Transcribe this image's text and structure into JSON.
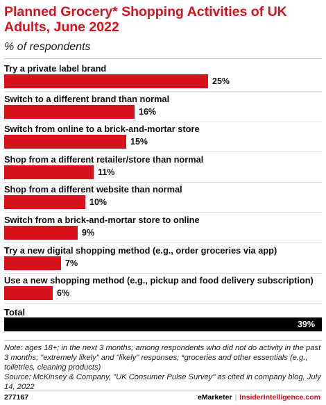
{
  "chart_data": {
    "type": "bar",
    "orientation": "horizontal",
    "title": "Planned Grocery* Shopping Activities of UK Adults, June 2022",
    "subtitle": "% of respondents",
    "categories": [
      "Try a private label brand",
      "Switch to a different brand than normal",
      "Switch from online to a brick-and-mortar store",
      "Shop from a different retailer/store than normal",
      "Shop from a different website than normal",
      "Switch from a brick-and-mortar store to online",
      "Try a new digital shopping method (e.g., order groceries via app)",
      "Use a new shopping method (e.g., pickup and food delivery subscription)"
    ],
    "values": [
      25,
      16,
      15,
      11,
      10,
      9,
      7,
      6
    ],
    "value_labels": [
      "25%",
      "16%",
      "15%",
      "11%",
      "10%",
      "9%",
      "7%",
      "6%"
    ],
    "total": {
      "label": "Total",
      "value": 39,
      "value_label": "39%"
    },
    "unit": "%",
    "bar_color": "#d6121c",
    "total_bar_color": "#000000"
  },
  "notes": {
    "text": "Note: ages 18+; in the next 3 months; among respondents who did not do activity in the past 3 months; \"extremely likely\" and \"likely\" responses; *groceries and other essentials (e.g., toiletries, cleaning products)",
    "source": "Source: McKinsey & Company, \"UK Consumer Pulse Survey\" as cited in company blog, July 14, 2022"
  },
  "footer": {
    "chart_id": "277167",
    "brand_left": "eMarketer",
    "separator": "|",
    "brand_right": "InsiderIntelligence.com"
  },
  "colors": {
    "accent": "#d6121c",
    "text": "#000000"
  }
}
